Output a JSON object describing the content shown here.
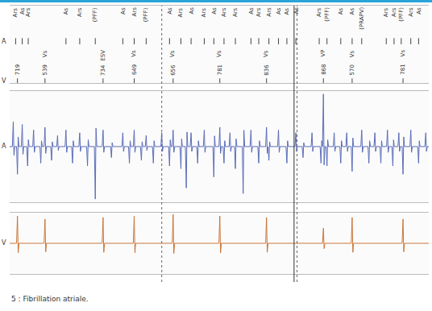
{
  "chart_data": {
    "type": "line",
    "caption": "5 : Fibrillation atriale.",
    "tick_labels": false,
    "xlim": [
      0,
      7000
    ],
    "ylim": [
      -1,
      1
    ],
    "marker_channels": [
      "A",
      "V"
    ],
    "atrial_markers": {
      "x": [
        100,
        210,
        310,
        940,
        1170,
        1430,
        1890,
        2080,
        2280,
        2670,
        2860,
        3030,
        3250,
        3410,
        3580,
        3770,
        4030,
        4160,
        4330,
        4490,
        4630,
        4780,
        5170,
        5300,
        5530,
        5720,
        5880,
        6290,
        6420,
        6540,
        6700,
        6830
      ],
      "labels": [
        "Ars",
        "As",
        "Ars",
        "As",
        "Ars",
        "(PFF)",
        "As",
        "Ars",
        "(PFF)",
        "As",
        "Ars",
        "As",
        "Ars",
        "As",
        "Ars",
        "Ars",
        "As",
        "Ars",
        "Ars",
        "As",
        "As",
        "As",
        "Ars",
        "(PFF)",
        "As",
        "As",
        "(PRAPV)",
        "Ars",
        "Ars",
        "(PFF)",
        "Ars",
        "As"
      ]
    },
    "ventricular_markers": {
      "x": [
        130,
        590,
        1560,
        2080,
        2730,
        3510,
        4290,
        5240,
        5720,
        6570
      ],
      "labels": [
        null,
        "Vs",
        "ESV",
        "Vs",
        "Vs",
        "Vs",
        "Vs",
        "VP",
        "Vs",
        "Vs"
      ],
      "intervals": [
        719,
        539,
        734,
        649,
        656,
        781,
        836,
        868,
        570,
        781
      ]
    },
    "cursors": [
      {
        "x": 4750,
        "line_style": "solid"
      },
      {
        "x": 2540,
        "line_style": "dotted"
      },
      {
        "x": 4800,
        "line_style": "dotted"
      }
    ],
    "series": [
      {
        "name": "A",
        "color": "#5a6cb8",
        "x": [
          60,
          130,
          210,
          300,
          400,
          520,
          590,
          700,
          800,
          940,
          1050,
          1170,
          1300,
          1430,
          1560,
          1700,
          1890,
          2000,
          2080,
          2200,
          2280,
          2400,
          2540,
          2670,
          2730,
          2860,
          2950,
          3030,
          3140,
          3250,
          3410,
          3510,
          3580,
          3680,
          3770,
          3900,
          4030,
          4160,
          4290,
          4330,
          4490,
          4630,
          4780,
          4900,
          5050,
          5200,
          5240,
          5300,
          5420,
          5530,
          5630,
          5720,
          5880,
          6000,
          6100,
          6200,
          6310,
          6400,
          6500,
          6570,
          6700,
          6830,
          6950
        ],
        "values": [
          0.45,
          -0.5,
          0.4,
          -0.35,
          0.3,
          -0.3,
          0.35,
          -0.25,
          0.2,
          0.3,
          -0.3,
          0.25,
          -0.35,
          -0.95,
          0.3,
          -0.2,
          0.25,
          -0.3,
          0.3,
          -0.25,
          0.2,
          -0.3,
          0.25,
          -0.35,
          0.3,
          -0.4,
          -0.75,
          0.25,
          -0.3,
          0.3,
          -0.55,
          0.35,
          -0.3,
          0.25,
          -0.4,
          -0.85,
          0.3,
          -0.3,
          0.35,
          -0.25,
          0.3,
          -0.3,
          0.25,
          -0.2,
          0.25,
          -0.3,
          0.95,
          -0.35,
          0.25,
          -0.3,
          0.25,
          -0.45,
          0.3,
          -0.3,
          0.25,
          -0.3,
          0.3,
          -0.35,
          0.25,
          -0.5,
          0.3,
          -0.3,
          0.25
        ]
      },
      {
        "name": "V",
        "color": "#c9763a",
        "x": [
          130,
          590,
          1560,
          2080,
          2730,
          3510,
          4290,
          5240,
          5720,
          6570
        ],
        "values": [
          0.9,
          0.8,
          0.85,
          0.9,
          0.95,
          0.9,
          0.85,
          0.5,
          0.85,
          0.8
        ]
      }
    ]
  }
}
